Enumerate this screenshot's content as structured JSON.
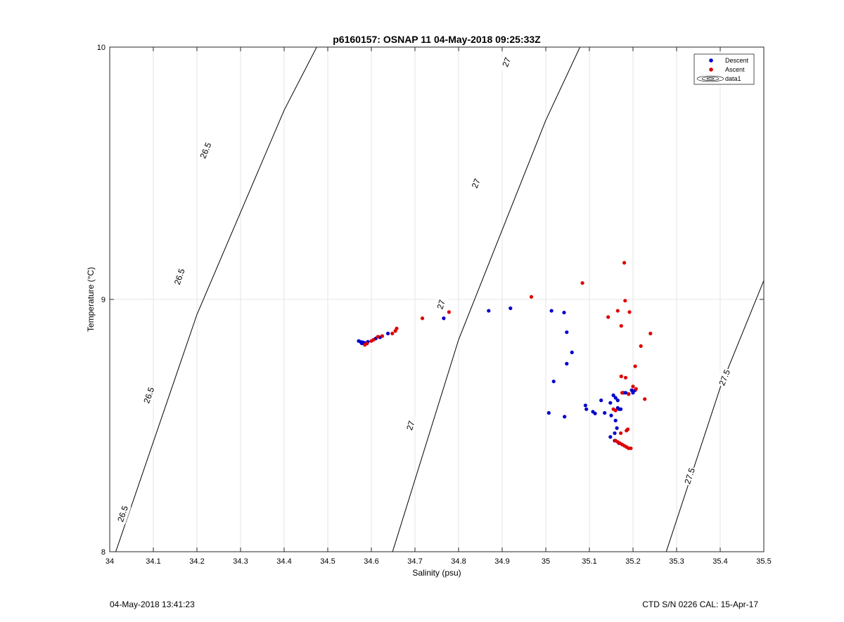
{
  "chart_data": {
    "type": "scatter",
    "title": "p6160157: OSNAP 11 04-May-2018 09:25:33Z",
    "xlabel": "Salinity (psu)",
    "ylabel": "Temperature (°C)",
    "xlim": [
      34,
      35.5
    ],
    "ylim": [
      8,
      10
    ],
    "xticks": [
      "34",
      "34.1",
      "34.2",
      "34.3",
      "34.4",
      "34.5",
      "34.6",
      "34.7",
      "34.8",
      "34.9",
      "35",
      "35.1",
      "35.2",
      "35.3",
      "35.4",
      "35.5"
    ],
    "yticks": [
      "8",
      "9",
      "10"
    ],
    "grid": true,
    "legend_position": "top-right",
    "legend": [
      "Descent",
      "Ascent",
      "data1"
    ],
    "series": [
      {
        "name": "Descent",
        "color": "#0000cc",
        "x": [
          34.571,
          34.575,
          34.58,
          34.578,
          34.584,
          34.592,
          34.61,
          34.62,
          34.638,
          34.766,
          34.869,
          34.919,
          35.013,
          35.042,
          35.048,
          35.06,
          35.048,
          35.018,
          35.007,
          35.043,
          35.091,
          35.093,
          35.108,
          35.113,
          35.127,
          35.135,
          35.148,
          35.15,
          35.155,
          35.16,
          35.165,
          35.168,
          35.165,
          35.172,
          35.178,
          35.183,
          35.19,
          35.197,
          35.2,
          35.205,
          35.163,
          35.158,
          35.16,
          35.148,
          35.158,
          35.168
        ],
        "y": [
          8.835,
          8.832,
          8.83,
          8.826,
          8.828,
          8.832,
          8.845,
          8.85,
          8.865,
          8.925,
          8.955,
          8.965,
          8.955,
          8.948,
          8.87,
          8.79,
          8.745,
          8.675,
          8.55,
          8.535,
          8.58,
          8.565,
          8.555,
          8.548,
          8.6,
          8.55,
          8.59,
          8.54,
          8.62,
          8.61,
          8.6,
          8.565,
          8.57,
          8.565,
          8.63,
          8.63,
          8.625,
          8.64,
          8.63,
          8.64,
          8.49,
          8.47,
          8.52,
          8.455,
          8.44,
          8.43
        ]
      },
      {
        "name": "Ascent",
        "color": "#dd0000",
        "x": [
          34.585,
          34.59,
          34.6,
          34.605,
          34.615,
          34.625,
          34.648,
          34.655,
          34.658,
          34.717,
          34.778,
          34.967,
          35.084,
          35.143,
          35.165,
          35.173,
          35.18,
          35.182,
          35.192,
          35.24,
          35.218,
          35.205,
          35.173,
          35.183,
          35.175,
          35.19,
          35.2,
          35.207,
          35.227,
          35.155,
          35.16,
          35.172,
          35.185,
          35.188,
          35.16,
          35.165,
          35.17,
          35.175,
          35.18,
          35.185,
          35.19,
          35.195
        ],
        "y": [
          8.82,
          8.825,
          8.835,
          8.84,
          8.852,
          8.855,
          8.865,
          8.875,
          8.885,
          8.925,
          8.95,
          9.01,
          9.065,
          8.93,
          8.955,
          8.895,
          9.145,
          8.995,
          8.95,
          8.865,
          8.815,
          8.735,
          8.695,
          8.69,
          8.63,
          8.625,
          8.655,
          8.645,
          8.605,
          8.565,
          8.56,
          8.47,
          8.48,
          8.485,
          8.44,
          8.435,
          8.43,
          8.425,
          8.42,
          8.415,
          8.41,
          8.41
        ]
      }
    ],
    "contours": [
      {
        "label": "26.5",
        "x": [
          34.0,
          34.2,
          34.4,
          34.6
        ],
        "y": [
          7.93,
          8.94,
          9.75,
          10.42
        ],
        "label_points": [
          [
            34.03,
            8.15
          ],
          [
            34.09,
            8.62
          ],
          [
            34.16,
            9.09
          ],
          [
            34.22,
            9.59
          ]
        ]
      },
      {
        "label": "27",
        "x": [
          34.6,
          34.8,
          35.0,
          35.2
        ],
        "y": [
          7.73,
          8.84,
          9.71,
          10.45
        ],
        "label_points": [
          [
            34.69,
            8.5
          ],
          [
            34.76,
            8.98
          ],
          [
            34.84,
            9.46
          ],
          [
            34.91,
            9.94
          ]
        ]
      },
      {
        "label": "27.5",
        "x": [
          35.2,
          35.4,
          35.6
        ],
        "y": [
          7.6,
          8.65,
          9.5
        ],
        "label_points": [
          [
            35.33,
            8.3
          ],
          [
            35.41,
            8.69
          ]
        ]
      }
    ]
  },
  "footer": {
    "left": "04-May-2018 13:41:23",
    "right": "CTD S/N 0226  CAL: 15-Apr-17"
  }
}
